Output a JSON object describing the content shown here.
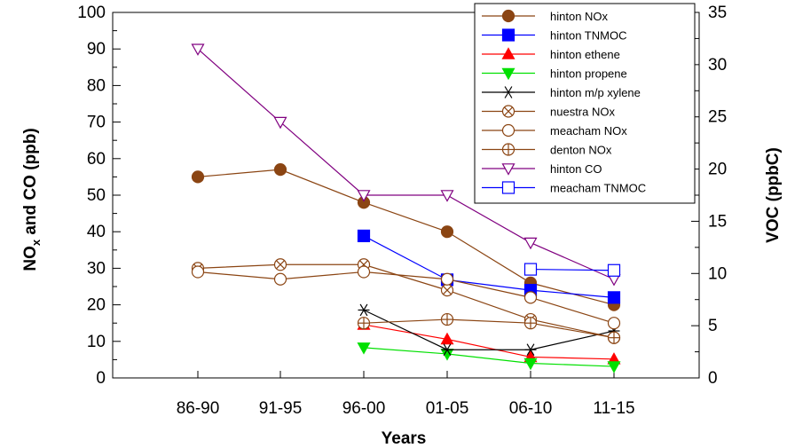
{
  "chart_data": {
    "type": "line",
    "categories": [
      "86-90",
      "91-95",
      "96-00",
      "01-05",
      "06-10",
      "11-15"
    ],
    "xlabel": "Years",
    "ylabel_left": {
      "main": "NO",
      "sub": "x",
      "rest": " and CO (ppb)"
    },
    "ylabel_right": "VOC (ppbC)",
    "ylim_left": [
      0,
      100
    ],
    "ylim_right": [
      0,
      35
    ],
    "yticks_left": [
      "0",
      "10",
      "20",
      "30",
      "40",
      "50",
      "60",
      "70",
      "80",
      "90",
      "100"
    ],
    "yticks_right": [
      "0",
      "5",
      "10",
      "15",
      "20",
      "25",
      "30",
      "35"
    ],
    "grid": false,
    "legend_position": "top-right",
    "series": [
      {
        "name": "hinton NOx",
        "axis": "left",
        "color": "#8B4513",
        "marker": "circle",
        "filled": true,
        "values": [
          55,
          57,
          48,
          40,
          26,
          20
        ]
      },
      {
        "name": "hinton TNMOC",
        "axis": "right",
        "color": "#0000FF",
        "marker": "square",
        "filled": true,
        "values": [
          null,
          null,
          13.6,
          9.4,
          8.4,
          7.7
        ]
      },
      {
        "name": "hinton ethene",
        "axis": "right",
        "color": "#FF0000",
        "marker": "triangle-up",
        "filled": true,
        "values": [
          null,
          null,
          5.1,
          3.7,
          2.0,
          1.8
        ]
      },
      {
        "name": "hinton propene",
        "axis": "right",
        "color": "#00E000",
        "marker": "triangle-down",
        "filled": true,
        "values": [
          null,
          null,
          2.9,
          2.3,
          1.4,
          1.1
        ]
      },
      {
        "name": "hinton m/p xylene",
        "axis": "right",
        "color": "#000000",
        "marker": "star",
        "filled": false,
        "values": [
          null,
          null,
          6.5,
          2.7,
          2.7,
          4.5
        ]
      },
      {
        "name": "nuestra NOx",
        "axis": "left",
        "color": "#8B4513",
        "marker": "circle-x",
        "filled": false,
        "values": [
          30,
          31,
          31,
          24,
          16,
          11
        ]
      },
      {
        "name": "meacham NOx",
        "axis": "left",
        "color": "#8B4513",
        "marker": "circle",
        "filled": false,
        "values": [
          29,
          27,
          29,
          27,
          22,
          15
        ]
      },
      {
        "name": "denton NOx",
        "axis": "left",
        "color": "#8B4513",
        "marker": "circle-plus",
        "filled": false,
        "values": [
          null,
          null,
          15,
          16,
          15,
          11
        ]
      },
      {
        "name": "hinton CO",
        "axis": "left",
        "color": "#800080",
        "marker": "triangle-down",
        "filled": false,
        "values": [
          90,
          70,
          50,
          50,
          37,
          27
        ]
      },
      {
        "name": "meacham TNMOC",
        "axis": "right",
        "color": "#0000FF",
        "marker": "square",
        "filled": false,
        "values": [
          null,
          null,
          null,
          null,
          10.4,
          10.3
        ]
      }
    ]
  }
}
